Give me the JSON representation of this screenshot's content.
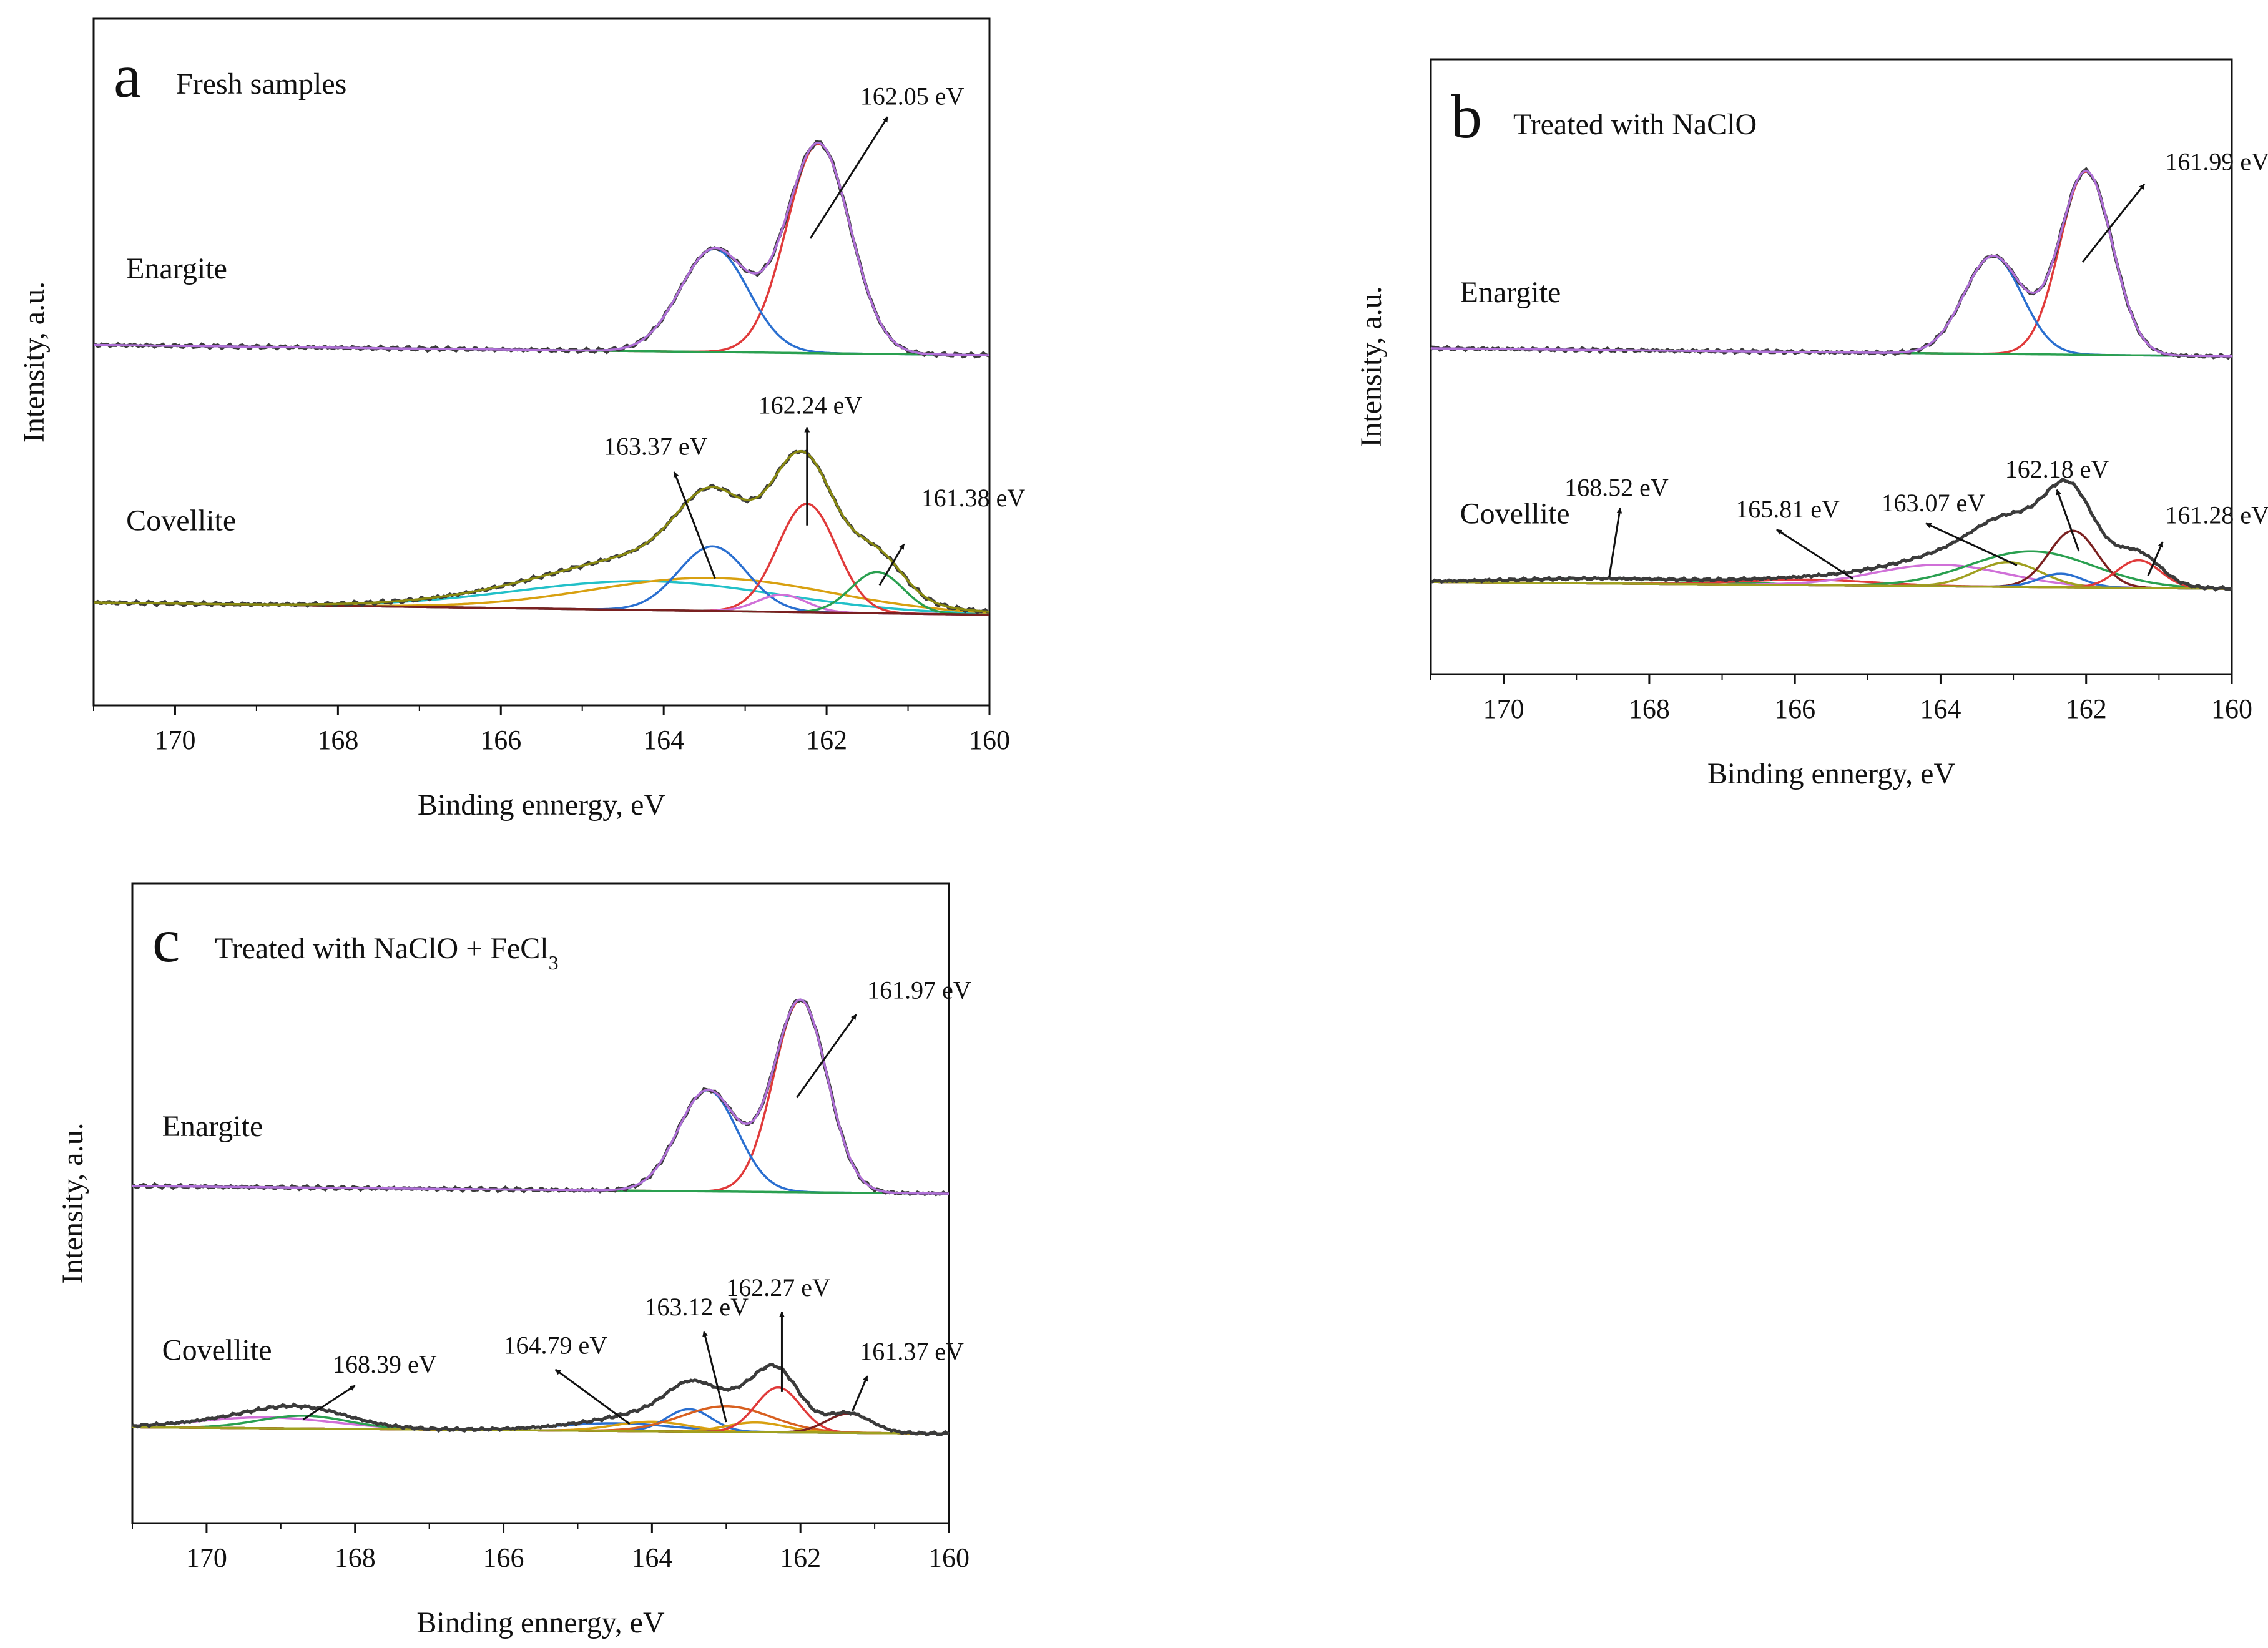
{
  "colors": {
    "raw": "#3b3b3b",
    "envelope_enargite": "#b070d8",
    "envelope_covellite_a": "#8a8a10",
    "red": "#e03a3a",
    "blue": "#2a6fd0",
    "green_bg": "#2aa050",
    "cyan": "#22c0c8",
    "orange": "#d8a010",
    "magenta": "#d070d8",
    "olive": "#a0a020",
    "dark_red": "#7a2020",
    "brown_orange": "#d86020"
  },
  "chart_data": [
    {
      "id": "a",
      "type": "line",
      "panel_letter": "a",
      "title": "Fresh samples",
      "title_sub": "",
      "xlabel": "Binding ennergy, eV",
      "ylabel": "Intensity, a.u.",
      "xlim": [
        171,
        160
      ],
      "x_ticks": [
        170,
        168,
        166,
        164,
        162,
        160
      ],
      "ylim": [
        0,
        1
      ],
      "grid": false,
      "samples": [
        {
          "name": "Enargite",
          "label_at": [
            170.6,
            0.622
          ],
          "baseline": [
            0.525,
            0.51
          ],
          "noise": 0.003,
          "envelope_color": "#b070d8",
          "components": [
            {
              "center": 162.1,
              "amp": 0.305,
              "sigma": 0.39,
              "color": "#e03a3a"
            },
            {
              "center": 163.38,
              "amp": 0.15,
              "sigma": 0.42,
              "color": "#2a6fd0"
            }
          ],
          "background_color": "#2aa050",
          "annotations": [
            {
              "text": "162.05 eV",
              "from": [
                162.2,
                0.68
              ],
              "to": [
                161.25,
                0.857
              ],
              "label_at": [
                160.95,
                0.875
              ]
            }
          ]
        },
        {
          "name": "Covellite",
          "label_at": [
            170.6,
            0.255
          ],
          "baseline": [
            0.15,
            0.132
          ],
          "noise": 0.003,
          "envelope_color": "#8a8a10",
          "components": [
            {
              "center": 164.2,
              "amp": 0.042,
              "sigma": 1.6,
              "color": "#22c0c8"
            },
            {
              "center": 163.4,
              "amp": 0.048,
              "sigma": 1.45,
              "color": "#d8a010"
            },
            {
              "center": 163.4,
              "amp": 0.094,
              "sigma": 0.42,
              "color": "#2a6fd0"
            },
            {
              "center": 162.24,
              "amp": 0.158,
              "sigma": 0.36,
              "color": "#e03a3a"
            },
            {
              "center": 162.55,
              "amp": 0.025,
              "sigma": 0.3,
              "color": "#d070d8"
            },
            {
              "center": 161.38,
              "amp": 0.06,
              "sigma": 0.32,
              "color": "#2aa050"
            }
          ],
          "background_color": "#7a2020",
          "annotations": [
            {
              "text": "163.37 eV",
              "from": [
                163.37,
                0.185
              ],
              "to": [
                163.87,
                0.34
              ],
              "label_at": [
                164.1,
                0.365
              ]
            },
            {
              "text": "162.24 eV",
              "from": [
                162.24,
                0.262
              ],
              "to": [
                162.24,
                0.405
              ],
              "label_at": [
                162.2,
                0.425
              ]
            },
            {
              "text": "161.38 eV",
              "from": [
                161.35,
                0.175
              ],
              "to": [
                161.05,
                0.235
              ],
              "label_at": [
                160.2,
                0.29
              ]
            }
          ]
        }
      ]
    },
    {
      "id": "b",
      "type": "line",
      "panel_letter": "b",
      "title": "Treated with NaClO",
      "title_sub": "",
      "xlabel": "Binding ennergy, eV",
      "ylabel": "Intensity, a.u.",
      "xlim": [
        171,
        160
      ],
      "x_ticks": [
        170,
        168,
        166,
        164,
        162,
        160
      ],
      "ylim": [
        0,
        1
      ],
      "grid": false,
      "samples": [
        {
          "name": "Enargite",
          "label_at": [
            170.6,
            0.605
          ],
          "baseline": [
            0.53,
            0.517
          ],
          "noise": 0.003,
          "envelope_color": "#b070d8",
          "components": [
            {
              "center": 162.0,
              "amp": 0.298,
              "sigma": 0.36,
              "color": "#e03a3a"
            },
            {
              "center": 163.28,
              "amp": 0.159,
              "sigma": 0.4,
              "color": "#2a6fd0"
            }
          ],
          "background_color": "#2aa050",
          "annotations": [
            {
              "text": "161.99 eV",
              "from": [
                162.05,
                0.67
              ],
              "to": [
                161.2,
                0.797
              ],
              "label_at": [
                160.2,
                0.82
              ]
            }
          ]
        },
        {
          "name": "Covellite",
          "label_at": [
            170.6,
            0.245
          ],
          "baseline": [
            0.15,
            0.139
          ],
          "noise": 0.0025,
          "envelope_color": "#3b3b3b",
          "components": [
            {
              "center": 168.52,
              "amp": 0.008,
              "sigma": 1.3,
              "color": "#2aa050"
            },
            {
              "center": 165.81,
              "amp": 0.009,
              "sigma": 0.9,
              "color": "#e03a3a"
            },
            {
              "center": 164.0,
              "amp": 0.035,
              "sigma": 0.9,
              "color": "#d070d8"
            },
            {
              "center": 163.07,
              "amp": 0.04,
              "sigma": 0.45,
              "color": "#a0a020"
            },
            {
              "center": 162.75,
              "amp": 0.058,
              "sigma": 0.85,
              "color": "#2aa050"
            },
            {
              "center": 162.18,
              "amp": 0.092,
              "sigma": 0.33,
              "color": "#7a2020"
            },
            {
              "center": 162.35,
              "amp": 0.022,
              "sigma": 0.3,
              "color": "#2a6fd0"
            },
            {
              "center": 161.28,
              "amp": 0.045,
              "sigma": 0.3,
              "color": "#e03a3a"
            }
          ],
          "background_color": "#a0a020",
          "annotations": [
            {
              "text": "168.52 eV",
              "from": [
                168.55,
                0.158
              ],
              "to": [
                168.4,
                0.27
              ],
              "label_at": [
                168.45,
                0.29
              ]
            },
            {
              "text": "165.81 eV",
              "from": [
                165.2,
                0.155
              ],
              "to": [
                166.25,
                0.235
              ],
              "label_at": [
                166.1,
                0.255
              ]
            },
            {
              "text": "163.07 eV",
              "from": [
                162.95,
                0.177
              ],
              "to": [
                164.2,
                0.245
              ],
              "label_at": [
                164.1,
                0.265
              ]
            },
            {
              "text": "162.18 eV",
              "from": [
                162.1,
                0.2
              ],
              "to": [
                162.4,
                0.3
              ],
              "label_at": [
                162.4,
                0.32
              ]
            },
            {
              "text": "161.28 eV",
              "from": [
                161.15,
                0.16
              ],
              "to": [
                160.95,
                0.215
              ],
              "label_at": [
                160.2,
                0.245
              ]
            }
          ]
        }
      ]
    },
    {
      "id": "c",
      "type": "line",
      "panel_letter": "c",
      "title": "Treated with NaClO + FeCl",
      "title_sub": "3",
      "xlabel": "Binding ennergy, eV",
      "ylabel": "Intensity, a.u.",
      "xlim": [
        171,
        160
      ],
      "x_ticks": [
        170,
        168,
        166,
        164,
        162,
        160
      ],
      "ylim": [
        0,
        1
      ],
      "grid": false,
      "samples": [
        {
          "name": "Enargite",
          "label_at": [
            170.6,
            0.605
          ],
          "baseline": [
            0.527,
            0.515
          ],
          "noise": 0.003,
          "envelope_color": "#b070d8",
          "components": [
            {
              "center": 162.0,
              "amp": 0.3,
              "sigma": 0.36,
              "color": "#e03a3a"
            },
            {
              "center": 163.25,
              "amp": 0.158,
              "sigma": 0.4,
              "color": "#2a6fd0"
            }
          ],
          "background_color": "#2aa050",
          "annotations": [
            {
              "text": "161.97 eV",
              "from": [
                162.05,
                0.665
              ],
              "to": [
                161.25,
                0.795
              ],
              "label_at": [
                160.4,
                0.82
              ]
            }
          ]
        },
        {
          "name": "Covellite",
          "label_at": [
            170.6,
            0.255
          ],
          "baseline": [
            0.15,
            0.14
          ],
          "noise": 0.0025,
          "envelope_color": "#3b3b3b",
          "components": [
            {
              "center": 169.2,
              "amp": 0.017,
              "sigma": 0.9,
              "color": "#d070d8"
            },
            {
              "center": 168.7,
              "amp": 0.02,
              "sigma": 0.6,
              "color": "#2aa050"
            },
            {
              "center": 164.5,
              "amp": 0.012,
              "sigma": 0.8,
              "color": "#2a6fd0"
            },
            {
              "center": 164.0,
              "amp": 0.015,
              "sigma": 0.5,
              "color": "#d8a010"
            },
            {
              "center": 163.5,
              "amp": 0.035,
              "sigma": 0.3,
              "color": "#2a6fd0"
            },
            {
              "center": 163.0,
              "amp": 0.04,
              "sigma": 0.6,
              "color": "#d86020"
            },
            {
              "center": 162.6,
              "amp": 0.015,
              "sigma": 0.4,
              "color": "#d8a010"
            },
            {
              "center": 162.3,
              "amp": 0.07,
              "sigma": 0.3,
              "color": "#e03a3a"
            },
            {
              "center": 161.35,
              "amp": 0.03,
              "sigma": 0.3,
              "color": "#7a2020"
            }
          ],
          "background_color": "#a0a020",
          "annotations": [
            {
              "text": "168.39 eV",
              "from": [
                168.7,
                0.162
              ],
              "to": [
                168.0,
                0.215
              ],
              "label_at": [
                167.6,
                0.235
              ]
            },
            {
              "text": "164.79 eV",
              "from": [
                164.3,
                0.155
              ],
              "to": [
                165.3,
                0.24
              ],
              "label_at": [
                165.3,
                0.265
              ]
            },
            {
              "text": "163.12 eV",
              "from": [
                163.0,
                0.158
              ],
              "to": [
                163.3,
                0.3
              ],
              "label_at": [
                163.4,
                0.325
              ]
            },
            {
              "text": "162.27 eV",
              "from": [
                162.25,
                0.205
              ],
              "to": [
                162.25,
                0.33
              ],
              "label_at": [
                162.3,
                0.355
              ]
            },
            {
              "text": "161.37 eV",
              "from": [
                161.3,
                0.175
              ],
              "to": [
                161.1,
                0.23
              ],
              "label_at": [
                160.5,
                0.255
              ]
            }
          ]
        }
      ]
    }
  ]
}
